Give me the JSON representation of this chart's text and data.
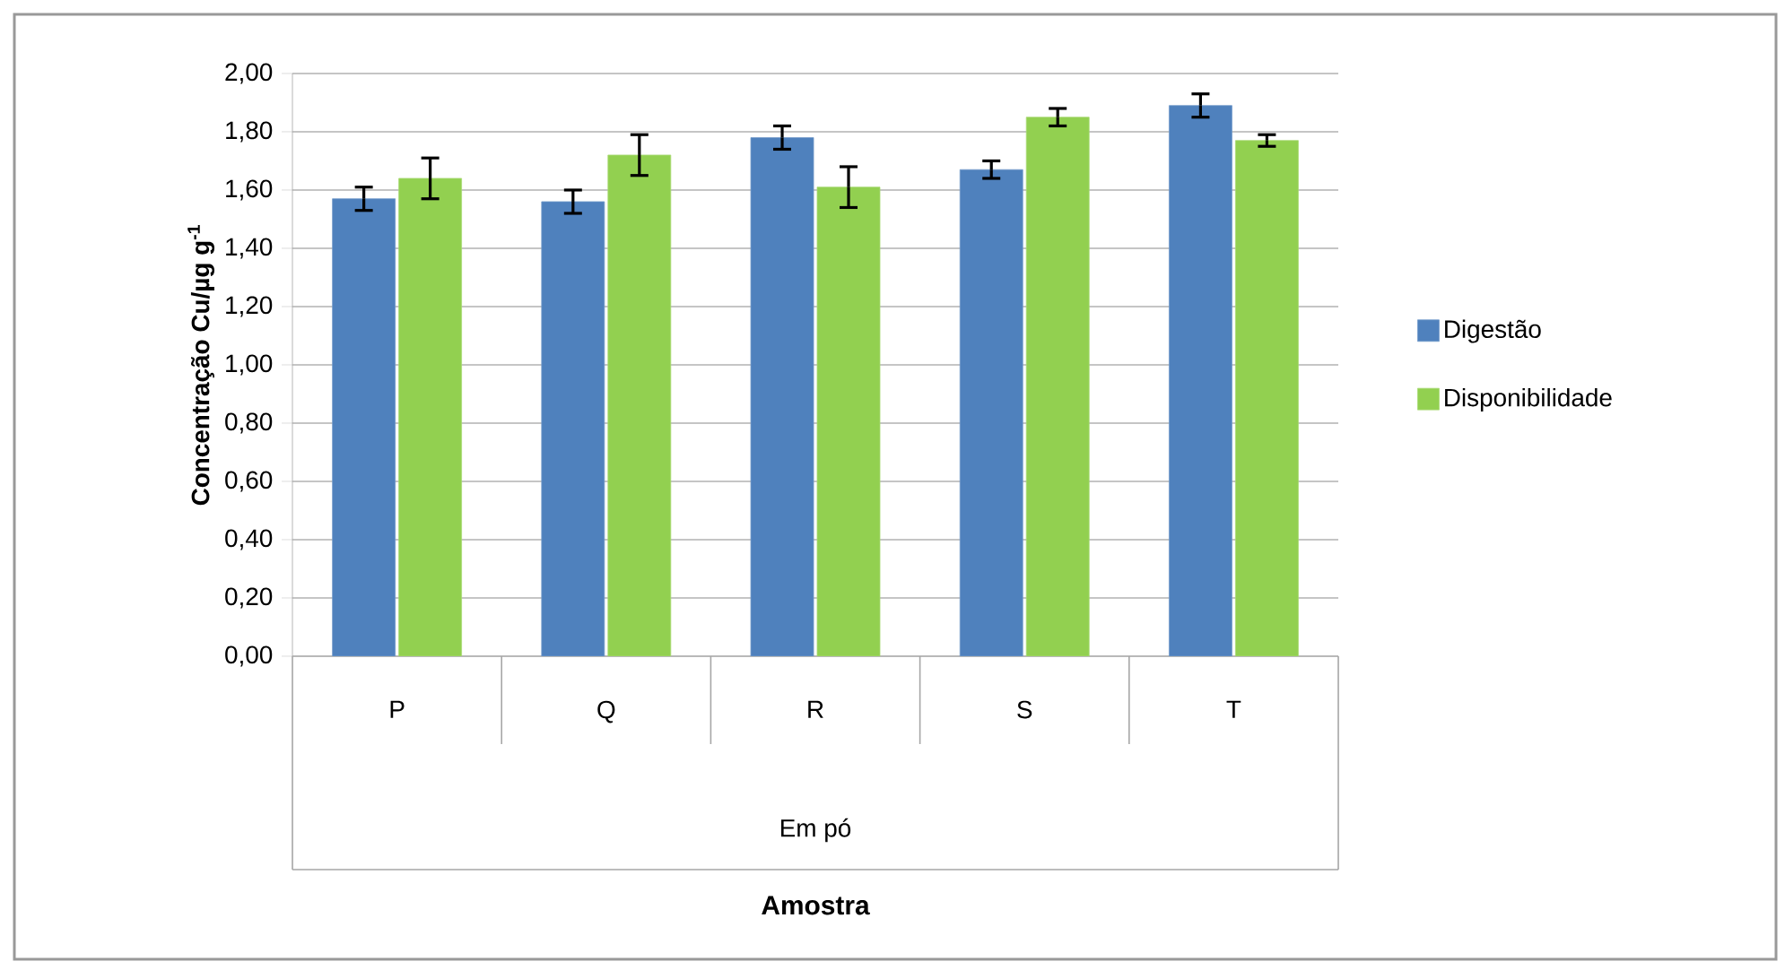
{
  "chart_data": {
    "type": "bar",
    "ylabel": "Concentração Cu/µg g$^{-1}$",
    "categories": [
      "P",
      "Q",
      "R",
      "S",
      "T"
    ],
    "annotations": [
      "Em pó",
      "Amostra"
    ],
    "series": [
      {
        "name": "Digestão",
        "color": "#4f81bd",
        "values": [
          1.57,
          1.56,
          1.78,
          1.67,
          1.89
        ],
        "errors": [
          0.04,
          0.04,
          0.04,
          0.03,
          0.04
        ]
      },
      {
        "name": "Disponibilidade",
        "color": "#92d050",
        "values": [
          1.64,
          1.72,
          1.61,
          1.85,
          1.77
        ],
        "errors": [
          0.07,
          0.07,
          0.07,
          0.03,
          0.02
        ]
      }
    ],
    "ylim": [
      0,
      2
    ],
    "yticks": [
      {
        "value": 0,
        "label": "0,00"
      },
      {
        "value": 0.2,
        "label": "0,20"
      },
      {
        "value": 0.4,
        "label": "0,40"
      },
      {
        "value": 0.6,
        "label": "0,60"
      },
      {
        "value": 0.8,
        "label": "0,80"
      },
      {
        "value": 1.0,
        "label": "1,00"
      },
      {
        "value": 1.2,
        "label": "1,20"
      },
      {
        "value": 1.4,
        "label": "1,40"
      },
      {
        "value": 1.6,
        "label": "1,60"
      },
      {
        "value": 1.8,
        "label": "1,80"
      },
      {
        "value": 2.0,
        "label": "2,00"
      }
    ],
    "grid": "y",
    "legend": "right"
  }
}
